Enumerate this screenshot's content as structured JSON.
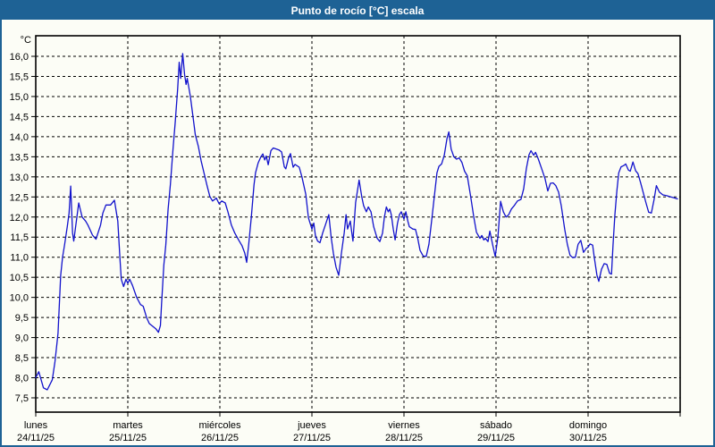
{
  "window": {
    "title": "Punto de rocío [°C] escala",
    "titlebar_color": "#1e6295",
    "border_color": "#1e6295",
    "plot_background": "#fcfdf6"
  },
  "chart_data": {
    "type": "line",
    "title": "Punto de rocío [°C] escala",
    "ylabel": "°C",
    "grid": {
      "style": "dashed",
      "color": "#000000",
      "horizontal": true,
      "vertical": true
    },
    "legend": "none",
    "y_axis": {
      "unit": "°C",
      "decimal_separator": ",",
      "tick_values": [
        16.0,
        15.5,
        15.0,
        14.5,
        14.0,
        13.5,
        13.0,
        12.5,
        12.0,
        11.5,
        11.0,
        10.5,
        10.0,
        9.5,
        9.0,
        8.5,
        8.0,
        7.5
      ],
      "tick_labels": [
        "16,0",
        "15,5",
        "15,0",
        "14,5",
        "14,0",
        "13,5",
        "13,0",
        "12,5",
        "12,0",
        "11,5",
        "11,0",
        "10,5",
        "10,0",
        "9,5",
        "9,0",
        "8,5",
        "8,0",
        "7,5"
      ],
      "plot_range_edges": [
        7.14,
        16.5
      ]
    },
    "x_axis": {
      "unit": "hours",
      "range": [
        0,
        168
      ],
      "day_span_hours": 24,
      "days": [
        {
          "name": "lunes",
          "date": "24/11/25",
          "t": 0
        },
        {
          "name": "martes",
          "date": "25/11/25",
          "t": 24
        },
        {
          "name": "miércoles",
          "date": "26/11/25",
          "t": 48
        },
        {
          "name": "jueves",
          "date": "27/11/25",
          "t": 72
        },
        {
          "name": "viernes",
          "date": "28/11/25",
          "t": 96
        },
        {
          "name": "sábado",
          "date": "29/11/25",
          "t": 120
        },
        {
          "name": "domingo",
          "date": "30/11/25",
          "t": 144
        }
      ]
    },
    "series": [
      {
        "name": "Punto de rocío",
        "color": "#1212cc",
        "points": [
          [
            0,
            8.0
          ],
          [
            0.8,
            8.15
          ],
          [
            2,
            7.75
          ],
          [
            3,
            7.7
          ],
          [
            4.3,
            7.95
          ],
          [
            5,
            8.4
          ],
          [
            5.8,
            9.1
          ],
          [
            6.5,
            10.55
          ],
          [
            7,
            11.0
          ],
          [
            7.5,
            11.3
          ],
          [
            8.2,
            11.75
          ],
          [
            8.7,
            12.1
          ],
          [
            9.1,
            12.77
          ],
          [
            9.6,
            11.6
          ],
          [
            9.9,
            11.4
          ],
          [
            11.2,
            12.35
          ],
          [
            12.1,
            12.0
          ],
          [
            13,
            11.9
          ],
          [
            13.6,
            11.8
          ],
          [
            14.8,
            11.55
          ],
          [
            15.7,
            11.45
          ],
          [
            16.9,
            11.8
          ],
          [
            17.5,
            12.1
          ],
          [
            18.3,
            12.3
          ],
          [
            19.5,
            12.3
          ],
          [
            20.5,
            12.42
          ],
          [
            21.4,
            11.9
          ],
          [
            22,
            10.9
          ],
          [
            22.3,
            10.45
          ],
          [
            22.9,
            10.27
          ],
          [
            23.5,
            10.45
          ],
          [
            24,
            10.35
          ],
          [
            24.5,
            10.45
          ],
          [
            25.2,
            10.3
          ],
          [
            26.3,
            10.0
          ],
          [
            27.3,
            9.82
          ],
          [
            28,
            9.78
          ],
          [
            28.9,
            9.5
          ],
          [
            29.6,
            9.35
          ],
          [
            30.5,
            9.28
          ],
          [
            31.3,
            9.22
          ],
          [
            32,
            9.13
          ],
          [
            32.5,
            9.3
          ],
          [
            32.8,
            9.85
          ],
          [
            33.4,
            10.8
          ],
          [
            33.9,
            11.3
          ],
          [
            34.5,
            12.2
          ],
          [
            35.1,
            12.8
          ],
          [
            35.8,
            13.7
          ],
          [
            36.4,
            14.4
          ],
          [
            37,
            15.2
          ],
          [
            37.4,
            15.85
          ],
          [
            37.8,
            15.45
          ],
          [
            38.3,
            16.07
          ],
          [
            38.8,
            15.55
          ],
          [
            39.2,
            15.3
          ],
          [
            39.5,
            15.45
          ],
          [
            40.3,
            15.0
          ],
          [
            41.2,
            14.35
          ],
          [
            41.6,
            14.05
          ],
          [
            42.4,
            13.75
          ],
          [
            43.1,
            13.4
          ],
          [
            43.8,
            13.12
          ],
          [
            44.7,
            12.77
          ],
          [
            45.4,
            12.51
          ],
          [
            46.1,
            12.4
          ],
          [
            47.1,
            12.47
          ],
          [
            47.8,
            12.33
          ],
          [
            48.5,
            12.4
          ],
          [
            49.4,
            12.35
          ],
          [
            50.1,
            12.13
          ],
          [
            51,
            11.8
          ],
          [
            51.9,
            11.6
          ],
          [
            52.9,
            11.43
          ],
          [
            53.8,
            11.28
          ],
          [
            54.5,
            11.1
          ],
          [
            55,
            10.87
          ],
          [
            55.5,
            11.3
          ],
          [
            56.2,
            12.0
          ],
          [
            56.9,
            12.8
          ],
          [
            57.3,
            13.1
          ],
          [
            58,
            13.35
          ],
          [
            58.7,
            13.5
          ],
          [
            59.2,
            13.57
          ],
          [
            59.7,
            13.42
          ],
          [
            60.1,
            13.52
          ],
          [
            60.6,
            13.3
          ],
          [
            61.3,
            13.65
          ],
          [
            61.9,
            13.72
          ],
          [
            63.4,
            13.67
          ],
          [
            64.1,
            13.62
          ],
          [
            64.8,
            13.25
          ],
          [
            65.2,
            13.2
          ],
          [
            65.9,
            13.47
          ],
          [
            66.4,
            13.58
          ],
          [
            67.1,
            13.24
          ],
          [
            67.6,
            13.31
          ],
          [
            68.7,
            13.24
          ],
          [
            69.4,
            13.0
          ],
          [
            70.4,
            12.57
          ],
          [
            71.1,
            11.98
          ],
          [
            72,
            11.7
          ],
          [
            72.5,
            11.85
          ],
          [
            72.9,
            11.54
          ],
          [
            73.5,
            11.4
          ],
          [
            74.1,
            11.36
          ],
          [
            74.8,
            11.6
          ],
          [
            75.5,
            11.8
          ],
          [
            76.4,
            12.06
          ],
          [
            77,
            11.5
          ],
          [
            77.6,
            11.1
          ],
          [
            78.3,
            10.75
          ],
          [
            79,
            10.55
          ],
          [
            79.7,
            11.1
          ],
          [
            80.4,
            11.6
          ],
          [
            80.9,
            12.06
          ],
          [
            81.3,
            11.7
          ],
          [
            82,
            11.9
          ],
          [
            82.7,
            11.4
          ],
          [
            83.4,
            12.36
          ],
          [
            84.3,
            12.92
          ],
          [
            85,
            12.5
          ],
          [
            85.5,
            12.28
          ],
          [
            86.2,
            12.13
          ],
          [
            86.7,
            12.25
          ],
          [
            87.4,
            12.13
          ],
          [
            88.1,
            11.76
          ],
          [
            89,
            11.47
          ],
          [
            89.7,
            11.39
          ],
          [
            90.4,
            11.6
          ],
          [
            90.9,
            12.0
          ],
          [
            91.4,
            12.25
          ],
          [
            91.9,
            12.13
          ],
          [
            92.3,
            12.2
          ],
          [
            92.7,
            12.06
          ],
          [
            93.2,
            11.7
          ],
          [
            93.7,
            11.43
          ],
          [
            94.3,
            11.84
          ],
          [
            94.8,
            12.06
          ],
          [
            95.3,
            12.13
          ],
          [
            96,
            11.95
          ],
          [
            96.5,
            12.13
          ],
          [
            97,
            11.9
          ],
          [
            97.4,
            11.76
          ],
          [
            98.3,
            11.7
          ],
          [
            99,
            11.69
          ],
          [
            99.6,
            11.47
          ],
          [
            100.2,
            11.17
          ],
          [
            101,
            11.03
          ],
          [
            101.8,
            11.02
          ],
          [
            102.5,
            11.32
          ],
          [
            103.2,
            11.9
          ],
          [
            103.9,
            12.5
          ],
          [
            104.6,
            13.1
          ],
          [
            105.1,
            13.26
          ],
          [
            105.8,
            13.32
          ],
          [
            106.5,
            13.54
          ],
          [
            107.2,
            13.95
          ],
          [
            107.7,
            14.12
          ],
          [
            108.3,
            13.69
          ],
          [
            109,
            13.5
          ],
          [
            109.7,
            13.44
          ],
          [
            110.4,
            13.47
          ],
          [
            111.1,
            13.36
          ],
          [
            111.8,
            13.14
          ],
          [
            112.5,
            13.03
          ],
          [
            113.4,
            12.5
          ],
          [
            114.2,
            12.0
          ],
          [
            114.9,
            11.62
          ],
          [
            115.8,
            11.47
          ],
          [
            116.3,
            11.54
          ],
          [
            116.8,
            11.43
          ],
          [
            117.2,
            11.47
          ],
          [
            117.9,
            11.39
          ],
          [
            118.4,
            11.65
          ],
          [
            119.1,
            11.32
          ],
          [
            119.8,
            11.02
          ],
          [
            120.5,
            11.5
          ],
          [
            121.2,
            12.39
          ],
          [
            121.9,
            12.13
          ],
          [
            122.6,
            12.0
          ],
          [
            123.3,
            12.06
          ],
          [
            124,
            12.2
          ],
          [
            124.7,
            12.28
          ],
          [
            125.6,
            12.4
          ],
          [
            126.5,
            12.44
          ],
          [
            127.2,
            12.7
          ],
          [
            127.9,
            13.2
          ],
          [
            128.6,
            13.55
          ],
          [
            129.1,
            13.65
          ],
          [
            129.8,
            13.54
          ],
          [
            130.3,
            13.61
          ],
          [
            131,
            13.45
          ],
          [
            131.9,
            13.2
          ],
          [
            132.8,
            12.95
          ],
          [
            133.5,
            12.65
          ],
          [
            134.2,
            12.84
          ],
          [
            134.9,
            12.85
          ],
          [
            135.6,
            12.78
          ],
          [
            136.3,
            12.62
          ],
          [
            137,
            12.28
          ],
          [
            137.9,
            11.7
          ],
          [
            138.6,
            11.32
          ],
          [
            139.3,
            11.05
          ],
          [
            140,
            10.99
          ],
          [
            140.7,
            11.0
          ],
          [
            141.4,
            11.32
          ],
          [
            142.1,
            11.42
          ],
          [
            142.8,
            11.12
          ],
          [
            143.5,
            11.22
          ],
          [
            144,
            11.25
          ],
          [
            144.5,
            11.33
          ],
          [
            145.2,
            11.3
          ],
          [
            145.6,
            11.0
          ],
          [
            146.3,
            10.55
          ],
          [
            146.8,
            10.4
          ],
          [
            147.5,
            10.7
          ],
          [
            148.2,
            10.84
          ],
          [
            148.9,
            10.82
          ],
          [
            149.6,
            10.6
          ],
          [
            150.1,
            10.58
          ],
          [
            150.5,
            11.3
          ],
          [
            151,
            12.06
          ],
          [
            151.5,
            12.65
          ],
          [
            152,
            13.1
          ],
          [
            152.6,
            13.25
          ],
          [
            153.3,
            13.28
          ],
          [
            153.8,
            13.32
          ],
          [
            154.5,
            13.17
          ],
          [
            155,
            13.14
          ],
          [
            155.7,
            13.37
          ],
          [
            156.4,
            13.15
          ],
          [
            157,
            13.08
          ],
          [
            157.7,
            12.85
          ],
          [
            158.4,
            12.6
          ],
          [
            159.1,
            12.35
          ],
          [
            159.8,
            12.12
          ],
          [
            160.5,
            12.1
          ],
          [
            161.2,
            12.43
          ],
          [
            161.8,
            12.78
          ],
          [
            162.6,
            12.62
          ],
          [
            163.5,
            12.55
          ],
          [
            164.5,
            12.53
          ],
          [
            165.5,
            12.5
          ],
          [
            166.4,
            12.48
          ],
          [
            167.3,
            12.45
          ]
        ]
      }
    ]
  }
}
